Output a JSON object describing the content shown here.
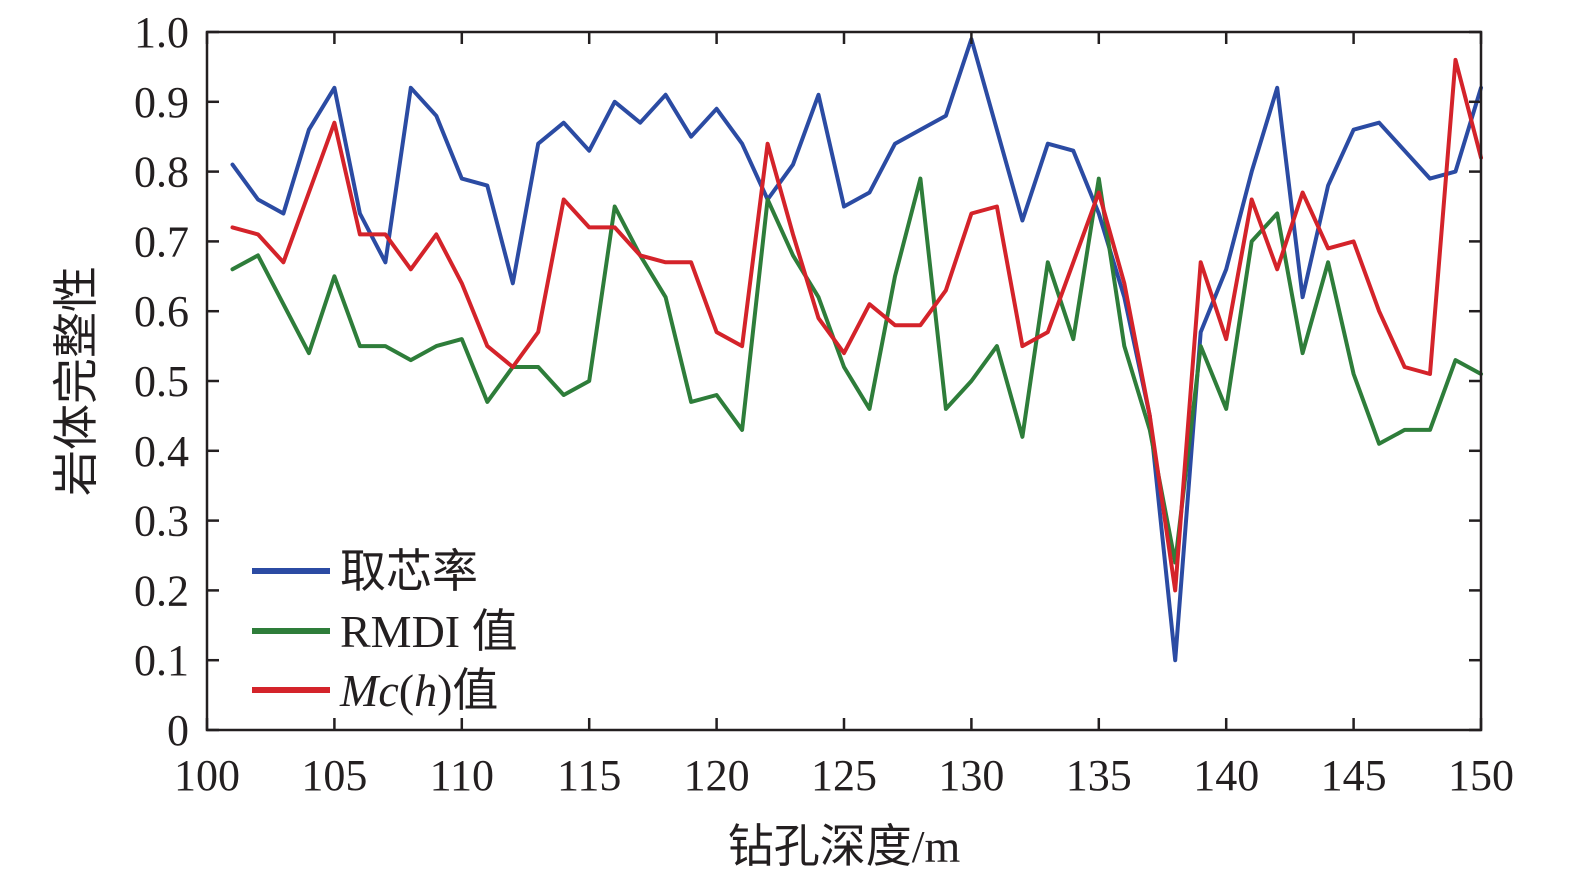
{
  "chart_data": {
    "type": "line",
    "xlabel": "钻孔深度/m",
    "ylabel": "岩体完整性",
    "xlim": [
      100,
      150
    ],
    "ylim": [
      0,
      1.0
    ],
    "x_ticks": [
      "100",
      "105",
      "110",
      "115",
      "120",
      "125",
      "130",
      "135",
      "140",
      "145",
      "150"
    ],
    "y_ticks": [
      "0",
      "0.1",
      "0.2",
      "0.3",
      "0.4",
      "0.5",
      "0.6",
      "0.7",
      "0.8",
      "0.9",
      "1.0"
    ],
    "legend_position": "bottom-left",
    "x": [
      101,
      102,
      103,
      104,
      105,
      106,
      107,
      108,
      109,
      110,
      111,
      112,
      113,
      114,
      115,
      116,
      117,
      118,
      119,
      120,
      121,
      122,
      123,
      124,
      125,
      126,
      127,
      128,
      129,
      130,
      131,
      132,
      133,
      134,
      135,
      136,
      137,
      138,
      139,
      140,
      141,
      142,
      143,
      144,
      145,
      146,
      147,
      148,
      149,
      150
    ],
    "series": [
      {
        "name": "取芯率",
        "color": "#2b4ba3",
        "values": [
          0.81,
          0.76,
          0.74,
          0.86,
          0.92,
          0.74,
          0.67,
          0.92,
          0.88,
          0.79,
          0.78,
          0.64,
          0.84,
          0.87,
          0.83,
          0.9,
          0.87,
          0.91,
          0.85,
          0.89,
          0.84,
          0.76,
          0.81,
          0.91,
          0.75,
          0.77,
          0.84,
          0.86,
          0.88,
          0.99,
          0.86,
          0.73,
          0.84,
          0.83,
          0.74,
          0.62,
          0.45,
          0.1,
          0.57,
          0.66,
          0.8,
          0.92,
          0.62,
          0.78,
          0.86,
          0.87,
          0.83,
          0.79,
          0.8,
          0.92
        ]
      },
      {
        "name": "RMDI 值",
        "color": "#2e7d3a",
        "values": [
          0.66,
          0.68,
          0.61,
          0.54,
          0.65,
          0.55,
          0.55,
          0.53,
          0.55,
          0.56,
          0.47,
          0.52,
          0.52,
          0.48,
          0.5,
          0.75,
          0.68,
          0.62,
          0.47,
          0.48,
          0.43,
          0.76,
          0.68,
          0.62,
          0.52,
          0.46,
          0.65,
          0.79,
          0.46,
          0.5,
          0.55,
          0.42,
          0.67,
          0.56,
          0.79,
          0.55,
          0.43,
          0.24,
          0.55,
          0.46,
          0.7,
          0.74,
          0.54,
          0.67,
          0.51,
          0.41,
          0.43,
          0.43,
          0.53,
          0.51
        ]
      },
      {
        "name": "Mc(h)值",
        "color": "#d4232a",
        "values": [
          0.72,
          0.71,
          0.67,
          0.77,
          0.87,
          0.71,
          0.71,
          0.66,
          0.71,
          0.64,
          0.55,
          0.52,
          0.57,
          0.76,
          0.72,
          0.72,
          0.68,
          0.67,
          0.67,
          0.57,
          0.55,
          0.84,
          0.71,
          0.59,
          0.54,
          0.61,
          0.58,
          0.58,
          0.63,
          0.74,
          0.75,
          0.55,
          0.57,
          0.67,
          0.77,
          0.64,
          0.45,
          0.2,
          0.67,
          0.56,
          0.76,
          0.66,
          0.77,
          0.69,
          0.7,
          0.6,
          0.52,
          0.51,
          0.96,
          0.82
        ]
      }
    ]
  }
}
